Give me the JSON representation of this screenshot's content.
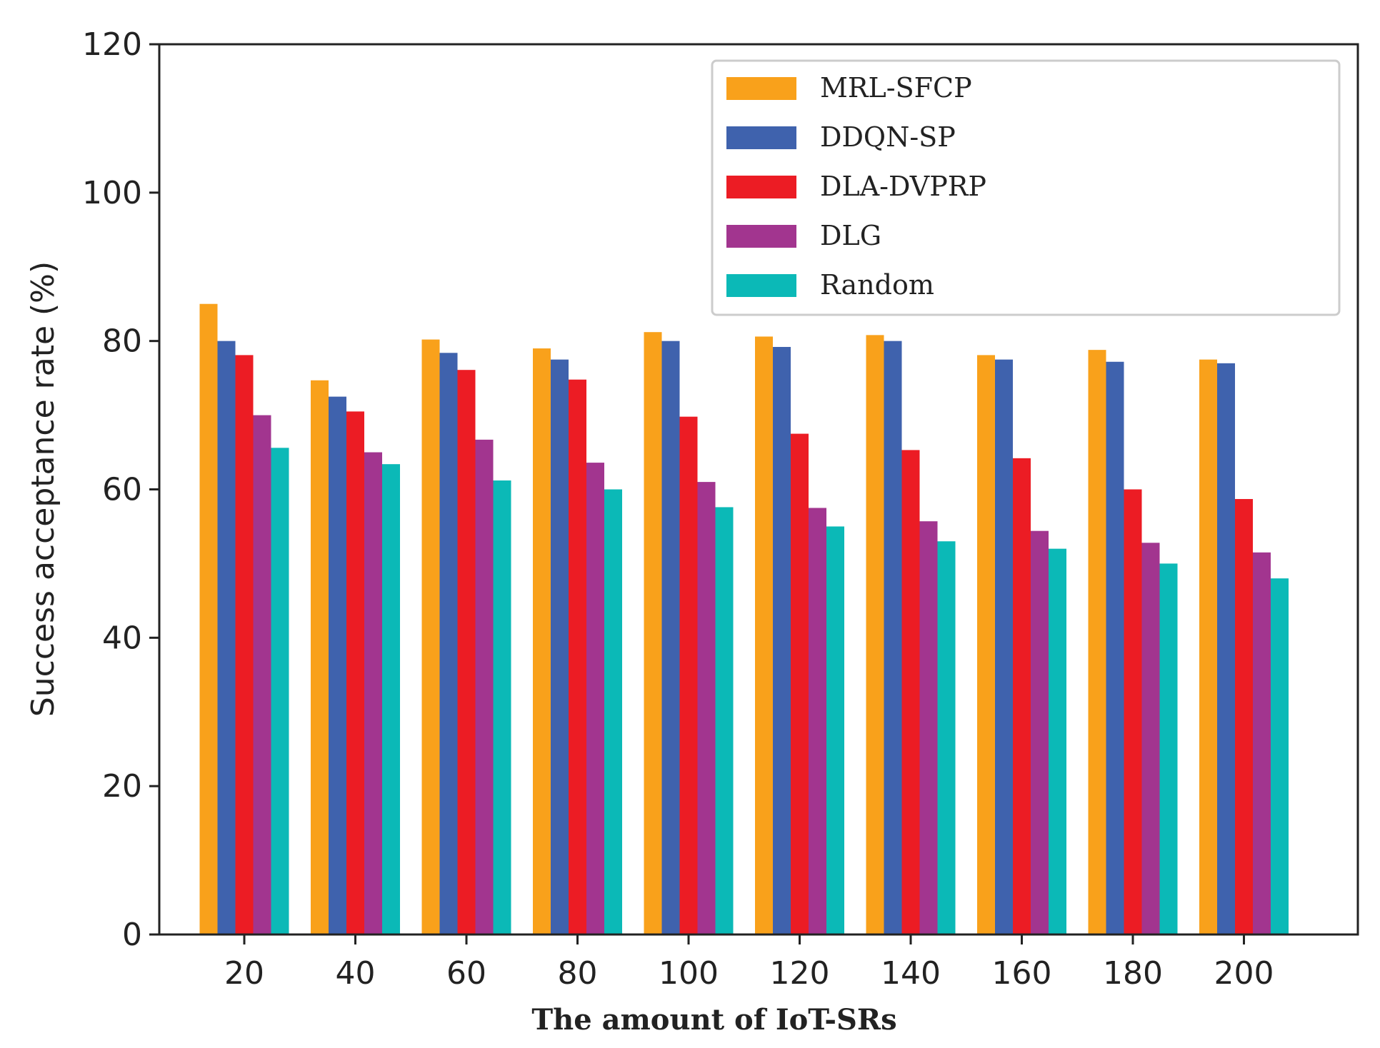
{
  "chart_data": {
    "type": "bar",
    "title": "",
    "xlabel": "The amount of IoT-SRs",
    "ylabel": "Success acceptance rate (%)",
    "ylim": [
      0,
      120
    ],
    "yticks": [
      "0",
      "20",
      "40",
      "60",
      "80",
      "100",
      "120"
    ],
    "categories": [
      "20",
      "40",
      "60",
      "80",
      "100",
      "120",
      "140",
      "160",
      "180",
      "200"
    ],
    "legend_position": "top-right",
    "series": [
      {
        "name": "MRL-SFCP",
        "color": "#f9a11b",
        "values": [
          85.0,
          74.7,
          80.2,
          79.0,
          81.2,
          80.6,
          80.8,
          78.1,
          78.8,
          77.5
        ]
      },
      {
        "name": "DDQN-SP",
        "color": "#3f62ad",
        "values": [
          80.0,
          72.5,
          78.4,
          77.5,
          80.0,
          79.2,
          80.0,
          77.5,
          77.2,
          77.0
        ]
      },
      {
        "name": "DLA-DVPRP",
        "color": "#ec1c24",
        "values": [
          78.1,
          70.5,
          76.1,
          74.8,
          69.8,
          67.5,
          65.3,
          64.2,
          60.0,
          58.7
        ]
      },
      {
        "name": "DLG",
        "color": "#a2358f",
        "values": [
          70.0,
          65.0,
          66.7,
          63.6,
          61.0,
          57.5,
          55.7,
          54.4,
          52.8,
          51.5
        ]
      },
      {
        "name": "Random",
        "color": "#0bb9b7",
        "values": [
          65.6,
          63.4,
          61.2,
          60.0,
          57.6,
          55.0,
          53.0,
          52.0,
          50.0,
          48.0
        ]
      }
    ]
  }
}
